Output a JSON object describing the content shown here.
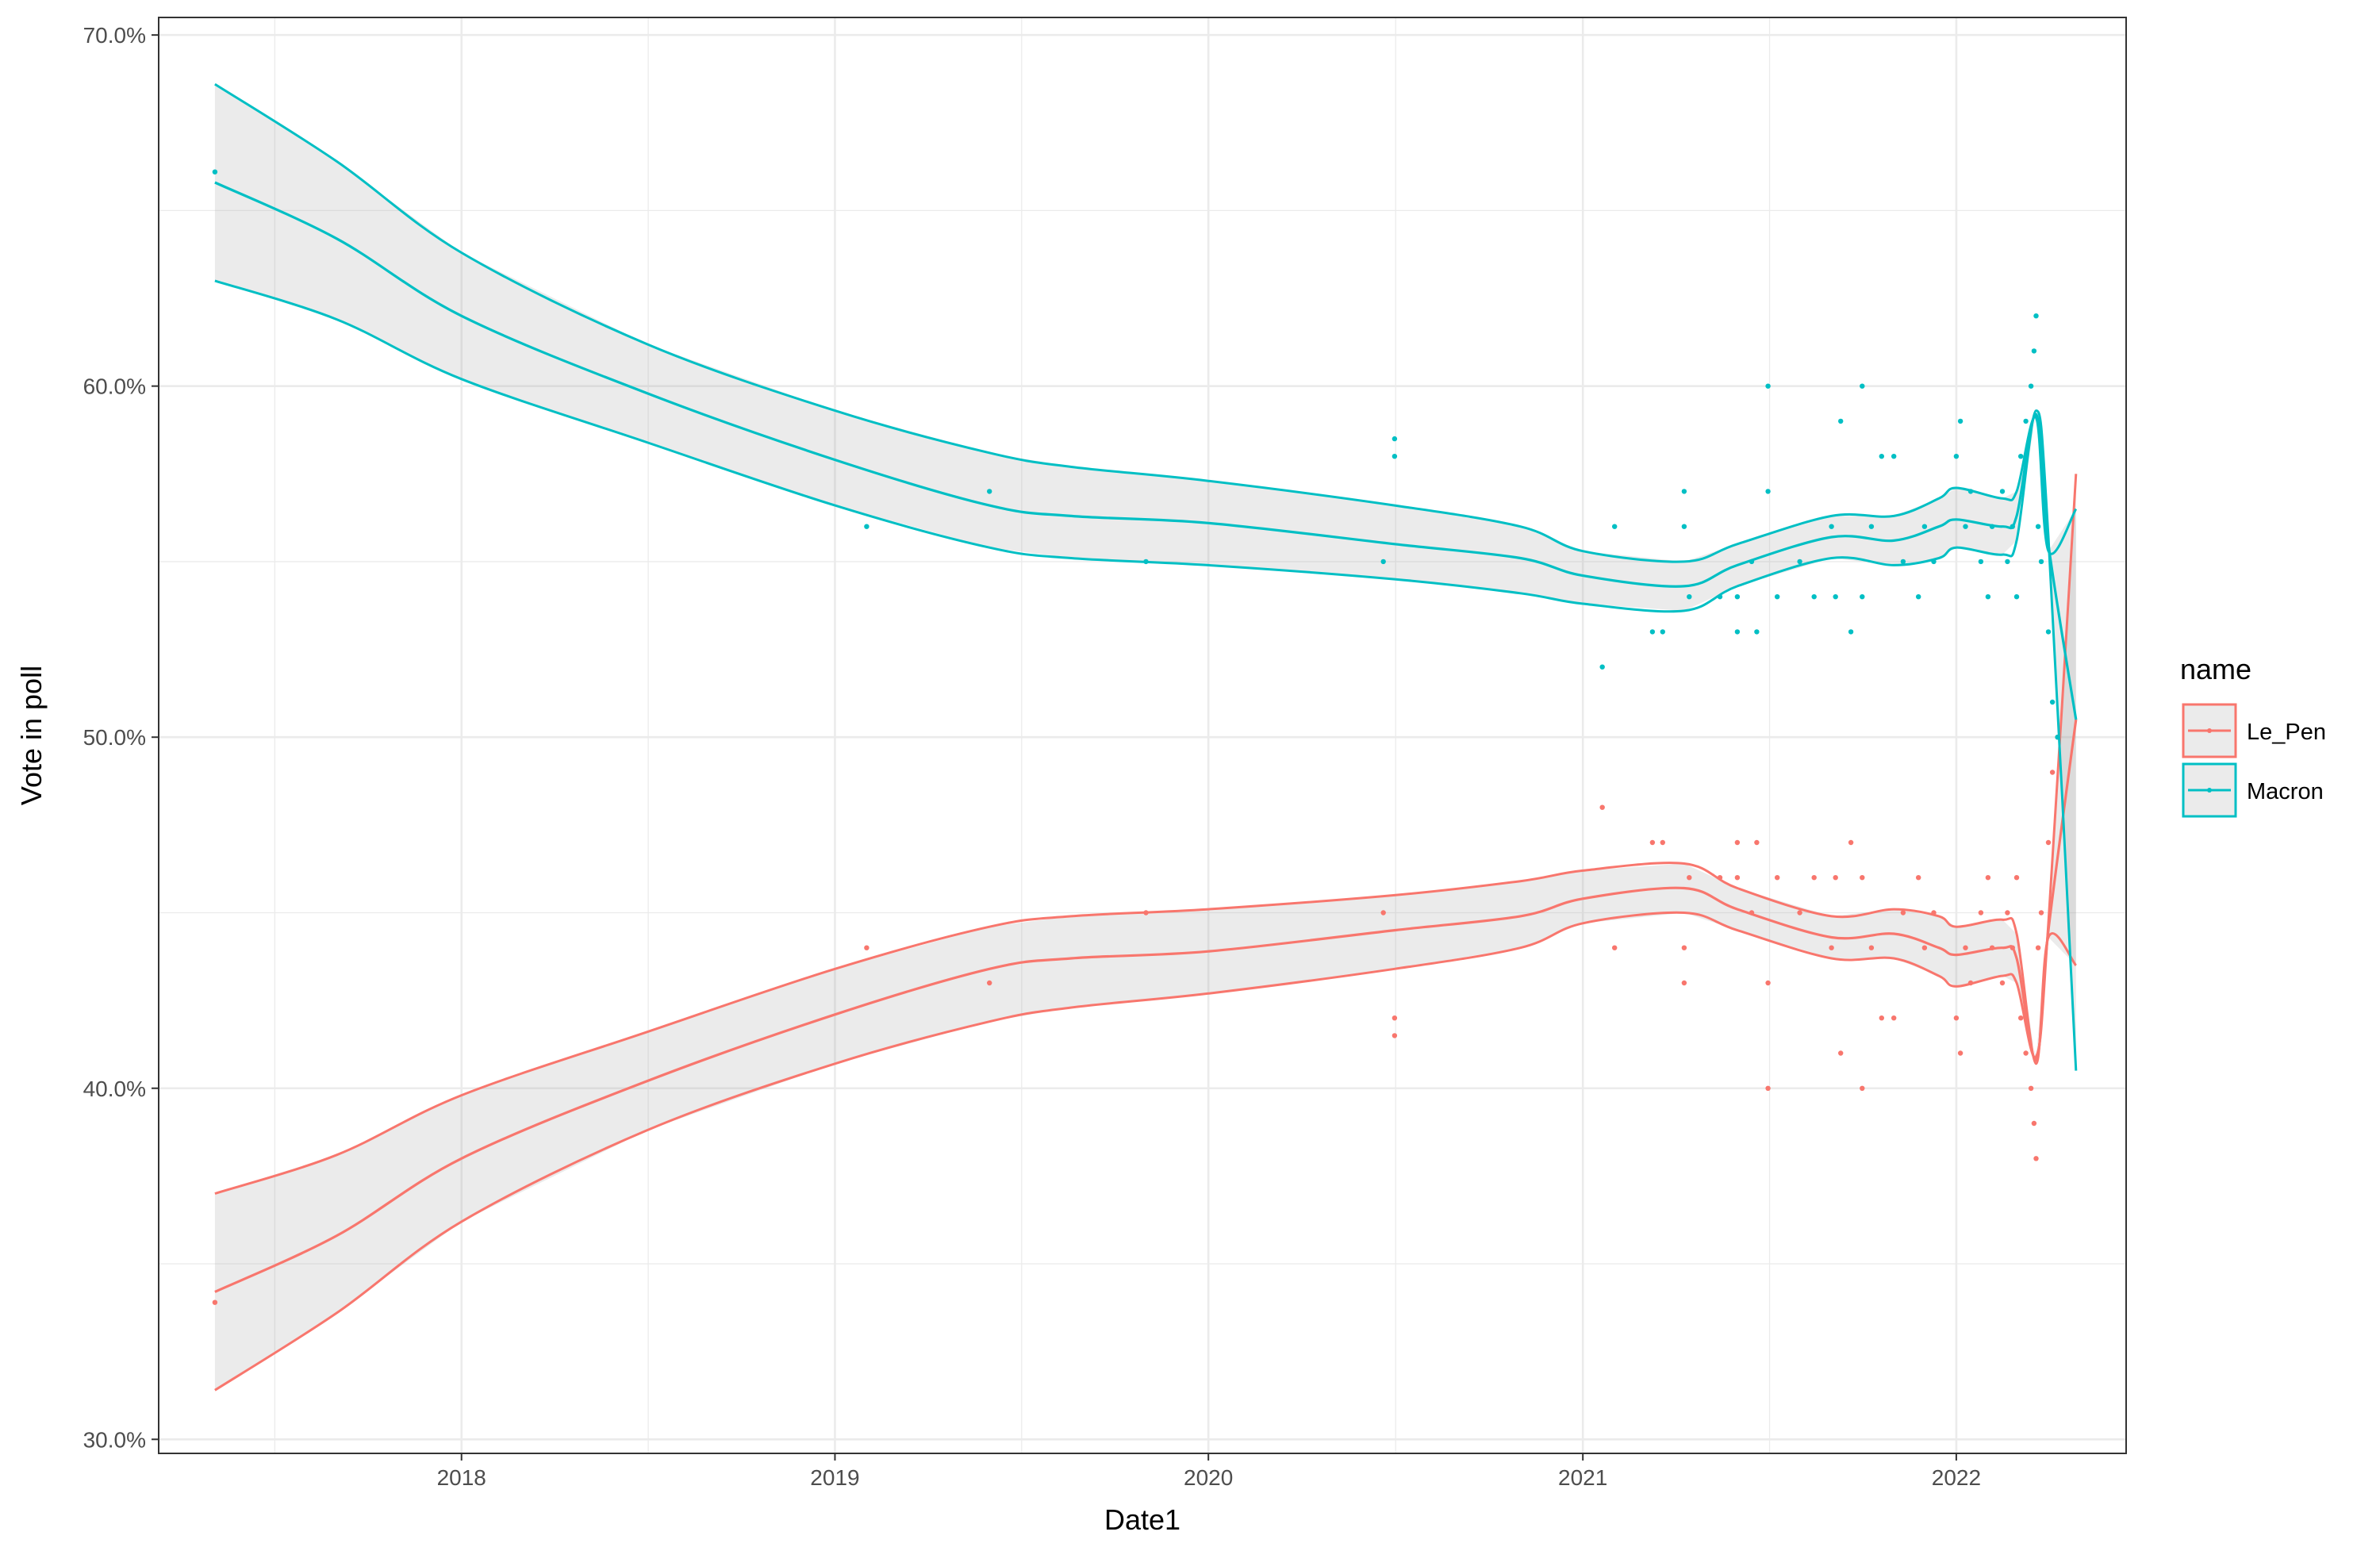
{
  "chart_data": {
    "type": "line",
    "xlabel": "Date1",
    "ylabel": "Vote in poll",
    "x_tick_labels": [
      "2018",
      "2019",
      "2020",
      "2021",
      "2022"
    ],
    "x_ticks": [
      "2018-01-01",
      "2019-01-01",
      "2020-01-01",
      "2021-01-01",
      "2022-01-01"
    ],
    "xlim": [
      "2017-03-11",
      "2022-06-16"
    ],
    "y_tick_labels": [
      "30.0%",
      "40.0%",
      "50.0%",
      "60.0%",
      "70.0%"
    ],
    "y_ticks": [
      0.3,
      0.4,
      0.5,
      0.6,
      0.7
    ],
    "ylim": [
      0.296,
      0.705
    ],
    "grid": true,
    "legend": {
      "title": "name",
      "position": "right",
      "entries": [
        "Le_Pen",
        "Macron"
      ]
    },
    "series": [
      {
        "name": "Le_Pen",
        "color": "#F8766D",
        "points": [
          [
            "2017-05-05",
            0.339
          ],
          [
            "2019-02-01",
            0.44
          ],
          [
            "2019-06-01",
            0.43
          ],
          [
            "2019-11-01",
            0.45
          ],
          [
            "2020-06-20",
            0.45
          ],
          [
            "2020-07-01",
            0.42
          ],
          [
            "2020-07-01",
            0.415
          ],
          [
            "2021-01-20",
            0.48
          ],
          [
            "2021-02-01",
            0.44
          ],
          [
            "2021-03-10",
            0.47
          ],
          [
            "2021-03-20",
            0.47
          ],
          [
            "2021-04-10",
            0.44
          ],
          [
            "2021-04-10",
            0.43
          ],
          [
            "2021-04-15",
            0.46
          ],
          [
            "2021-05-15",
            0.46
          ],
          [
            "2021-06-01",
            0.47
          ],
          [
            "2021-06-01",
            0.46
          ],
          [
            "2021-06-15",
            0.45
          ],
          [
            "2021-06-20",
            0.47
          ],
          [
            "2021-07-01",
            0.4
          ],
          [
            "2021-07-01",
            0.43
          ],
          [
            "2021-07-10",
            0.46
          ],
          [
            "2021-08-01",
            0.45
          ],
          [
            "2021-08-15",
            0.46
          ],
          [
            "2021-09-01",
            0.44
          ],
          [
            "2021-09-05",
            0.46
          ],
          [
            "2021-09-10",
            0.41
          ],
          [
            "2021-09-20",
            0.47
          ],
          [
            "2021-10-01",
            0.4
          ],
          [
            "2021-10-01",
            0.46
          ],
          [
            "2021-10-10",
            0.44
          ],
          [
            "2021-10-20",
            0.42
          ],
          [
            "2021-11-01",
            0.42
          ],
          [
            "2021-11-10",
            0.45
          ],
          [
            "2021-11-25",
            0.46
          ],
          [
            "2021-12-01",
            0.44
          ],
          [
            "2021-12-10",
            0.45
          ],
          [
            "2022-01-01",
            0.42
          ],
          [
            "2022-01-05",
            0.41
          ],
          [
            "2022-01-10",
            0.44
          ],
          [
            "2022-01-15",
            0.43
          ],
          [
            "2022-01-25",
            0.45
          ],
          [
            "2022-02-01",
            0.46
          ],
          [
            "2022-02-05",
            0.44
          ],
          [
            "2022-02-15",
            0.43
          ],
          [
            "2022-02-20",
            0.45
          ],
          [
            "2022-02-25",
            0.44
          ],
          [
            "2022-03-01",
            0.46
          ],
          [
            "2022-03-05",
            0.42
          ],
          [
            "2022-03-10",
            0.41
          ],
          [
            "2022-03-15",
            0.4
          ],
          [
            "2022-03-18",
            0.39
          ],
          [
            "2022-03-20",
            0.38
          ],
          [
            "2022-03-22",
            0.44
          ],
          [
            "2022-03-25",
            0.45
          ],
          [
            "2022-04-01",
            0.47
          ],
          [
            "2022-04-05",
            0.49
          ],
          [
            "2022-04-10",
            0.5
          ]
        ],
        "fit": [
          [
            "2017-05-05",
            0.342
          ],
          [
            "2017-09-01",
            0.358
          ],
          [
            "2018-01-01",
            0.38
          ],
          [
            "2018-07-01",
            0.402
          ],
          [
            "2019-01-01",
            0.421
          ],
          [
            "2019-06-01",
            0.434
          ],
          [
            "2019-08-20",
            0.437
          ],
          [
            "2020-01-01",
            0.439
          ],
          [
            "2020-07-01",
            0.445
          ],
          [
            "2020-11-01",
            0.449
          ],
          [
            "2021-01-01",
            0.454
          ],
          [
            "2021-04-10",
            0.457
          ],
          [
            "2021-06-01",
            0.451
          ],
          [
            "2021-09-01",
            0.443
          ],
          [
            "2021-11-01",
            0.444
          ],
          [
            "2021-12-15",
            0.44
          ],
          [
            "2022-01-01",
            0.438
          ],
          [
            "2022-02-15",
            0.44
          ],
          [
            "2022-03-01",
            0.437
          ],
          [
            "2022-03-20",
            0.408
          ],
          [
            "2022-04-01",
            0.445
          ],
          [
            "2022-04-28",
            0.505
          ]
        ],
        "ci_lower": [
          [
            "2017-05-05",
            0.314
          ],
          [
            "2017-09-01",
            0.336
          ],
          [
            "2018-01-01",
            0.362
          ],
          [
            "2018-07-01",
            0.388
          ],
          [
            "2019-01-01",
            0.407
          ],
          [
            "2019-06-01",
            0.419
          ],
          [
            "2019-08-20",
            0.423
          ],
          [
            "2020-01-01",
            0.427
          ],
          [
            "2020-07-01",
            0.434
          ],
          [
            "2020-11-01",
            0.44
          ],
          [
            "2021-01-01",
            0.447
          ],
          [
            "2021-04-10",
            0.45
          ],
          [
            "2021-06-01",
            0.445
          ],
          [
            "2021-09-01",
            0.437
          ],
          [
            "2021-11-01",
            0.437
          ],
          [
            "2021-12-15",
            0.432
          ],
          [
            "2022-01-01",
            0.429
          ],
          [
            "2022-02-15",
            0.432
          ],
          [
            "2022-03-01",
            0.43
          ],
          [
            "2022-03-20",
            0.409
          ],
          [
            "2022-04-01",
            0.447
          ],
          [
            "2022-04-28",
            0.575
          ]
        ],
        "ci_upper": [
          [
            "2017-05-05",
            0.37
          ],
          [
            "2017-09-01",
            0.381
          ],
          [
            "2018-01-01",
            0.398
          ],
          [
            "2018-07-01",
            0.416
          ],
          [
            "2019-01-01",
            0.434
          ],
          [
            "2019-06-01",
            0.446
          ],
          [
            "2019-08-20",
            0.449
          ],
          [
            "2020-01-01",
            0.451
          ],
          [
            "2020-07-01",
            0.455
          ],
          [
            "2020-11-01",
            0.459
          ],
          [
            "2021-01-01",
            0.462
          ],
          [
            "2021-04-10",
            0.464
          ],
          [
            "2021-06-01",
            0.457
          ],
          [
            "2021-09-01",
            0.449
          ],
          [
            "2021-11-01",
            0.451
          ],
          [
            "2021-12-15",
            0.449
          ],
          [
            "2022-01-01",
            0.446
          ],
          [
            "2022-02-15",
            0.448
          ],
          [
            "2022-03-01",
            0.444
          ],
          [
            "2022-03-20",
            0.407
          ],
          [
            "2022-04-01",
            0.443
          ],
          [
            "2022-04-28",
            0.435
          ]
        ]
      },
      {
        "name": "Macron",
        "color": "#00BFC4",
        "points": [
          [
            "2017-05-05",
            0.661
          ],
          [
            "2019-02-01",
            0.56
          ],
          [
            "2019-06-01",
            0.57
          ],
          [
            "2019-11-01",
            0.55
          ],
          [
            "2020-06-20",
            0.55
          ],
          [
            "2020-07-01",
            0.58
          ],
          [
            "2020-07-01",
            0.585
          ],
          [
            "2021-01-20",
            0.52
          ],
          [
            "2021-02-01",
            0.56
          ],
          [
            "2021-03-10",
            0.53
          ],
          [
            "2021-03-20",
            0.53
          ],
          [
            "2021-04-10",
            0.56
          ],
          [
            "2021-04-10",
            0.57
          ],
          [
            "2021-04-15",
            0.54
          ],
          [
            "2021-05-15",
            0.54
          ],
          [
            "2021-06-01",
            0.53
          ],
          [
            "2021-06-01",
            0.54
          ],
          [
            "2021-06-15",
            0.55
          ],
          [
            "2021-06-20",
            0.53
          ],
          [
            "2021-07-01",
            0.6
          ],
          [
            "2021-07-01",
            0.57
          ],
          [
            "2021-07-10",
            0.54
          ],
          [
            "2021-08-01",
            0.55
          ],
          [
            "2021-08-15",
            0.54
          ],
          [
            "2021-09-01",
            0.56
          ],
          [
            "2021-09-05",
            0.54
          ],
          [
            "2021-09-10",
            0.59
          ],
          [
            "2021-09-20",
            0.53
          ],
          [
            "2021-10-01",
            0.6
          ],
          [
            "2021-10-01",
            0.54
          ],
          [
            "2021-10-10",
            0.56
          ],
          [
            "2021-10-20",
            0.58
          ],
          [
            "2021-11-01",
            0.58
          ],
          [
            "2021-11-10",
            0.55
          ],
          [
            "2021-11-25",
            0.54
          ],
          [
            "2021-12-01",
            0.56
          ],
          [
            "2021-12-10",
            0.55
          ],
          [
            "2022-01-01",
            0.58
          ],
          [
            "2022-01-05",
            0.59
          ],
          [
            "2022-01-10",
            0.56
          ],
          [
            "2022-01-15",
            0.57
          ],
          [
            "2022-01-25",
            0.55
          ],
          [
            "2022-02-01",
            0.54
          ],
          [
            "2022-02-05",
            0.56
          ],
          [
            "2022-02-15",
            0.57
          ],
          [
            "2022-02-20",
            0.55
          ],
          [
            "2022-02-25",
            0.56
          ],
          [
            "2022-03-01",
            0.54
          ],
          [
            "2022-03-05",
            0.58
          ],
          [
            "2022-03-10",
            0.59
          ],
          [
            "2022-03-15",
            0.6
          ],
          [
            "2022-03-18",
            0.61
          ],
          [
            "2022-03-20",
            0.62
          ],
          [
            "2022-03-22",
            0.56
          ],
          [
            "2022-03-25",
            0.55
          ],
          [
            "2022-04-01",
            0.53
          ],
          [
            "2022-04-05",
            0.51
          ],
          [
            "2022-04-10",
            0.5
          ]
        ],
        "fit": [
          [
            "2017-05-05",
            0.658
          ],
          [
            "2017-09-01",
            0.642
          ],
          [
            "2018-01-01",
            0.62
          ],
          [
            "2018-07-01",
            0.598
          ],
          [
            "2019-01-01",
            0.579
          ],
          [
            "2019-06-01",
            0.566
          ],
          [
            "2019-08-20",
            0.563
          ],
          [
            "2020-01-01",
            0.561
          ],
          [
            "2020-07-01",
            0.555
          ],
          [
            "2020-11-01",
            0.551
          ],
          [
            "2021-01-01",
            0.546
          ],
          [
            "2021-04-10",
            0.543
          ],
          [
            "2021-06-01",
            0.549
          ],
          [
            "2021-09-01",
            0.557
          ],
          [
            "2021-11-01",
            0.556
          ],
          [
            "2021-12-15",
            0.56
          ],
          [
            "2022-01-01",
            0.562
          ],
          [
            "2022-02-15",
            0.56
          ],
          [
            "2022-03-01",
            0.563
          ],
          [
            "2022-03-20",
            0.592
          ],
          [
            "2022-04-01",
            0.555
          ],
          [
            "2022-04-28",
            0.505
          ]
        ],
        "ci_lower": [
          [
            "2017-05-05",
            0.63
          ],
          [
            "2017-09-01",
            0.619
          ],
          [
            "2018-01-01",
            0.602
          ],
          [
            "2018-07-01",
            0.584
          ],
          [
            "2019-01-01",
            0.566
          ],
          [
            "2019-06-01",
            0.554
          ],
          [
            "2019-08-20",
            0.551
          ],
          [
            "2020-01-01",
            0.549
          ],
          [
            "2020-07-01",
            0.545
          ],
          [
            "2020-11-01",
            0.541
          ],
          [
            "2021-01-01",
            0.538
          ],
          [
            "2021-04-10",
            0.536
          ],
          [
            "2021-06-01",
            0.543
          ],
          [
            "2021-09-01",
            0.551
          ],
          [
            "2021-11-01",
            0.549
          ],
          [
            "2021-12-15",
            0.551
          ],
          [
            "2022-01-01",
            0.554
          ],
          [
            "2022-02-15",
            0.552
          ],
          [
            "2022-03-01",
            0.556
          ],
          [
            "2022-03-20",
            0.593
          ],
          [
            "2022-04-01",
            0.557
          ],
          [
            "2022-04-28",
            0.405
          ]
        ],
        "ci_upper": [
          [
            "2017-05-05",
            0.686
          ],
          [
            "2017-09-01",
            0.664
          ],
          [
            "2018-01-01",
            0.638
          ],
          [
            "2018-07-01",
            0.612
          ],
          [
            "2019-01-01",
            0.593
          ],
          [
            "2019-06-01",
            0.581
          ],
          [
            "2019-08-20",
            0.577
          ],
          [
            "2020-01-01",
            0.573
          ],
          [
            "2020-07-01",
            0.566
          ],
          [
            "2020-11-01",
            0.56
          ],
          [
            "2021-01-01",
            0.553
          ],
          [
            "2021-04-10",
            0.55
          ],
          [
            "2021-06-01",
            0.555
          ],
          [
            "2021-09-01",
            0.563
          ],
          [
            "2021-11-01",
            0.563
          ],
          [
            "2021-12-15",
            0.568
          ],
          [
            "2022-01-01",
            0.571
          ],
          [
            "2022-02-15",
            0.568
          ],
          [
            "2022-03-01",
            0.57
          ],
          [
            "2022-03-20",
            0.591
          ],
          [
            "2022-04-01",
            0.553
          ],
          [
            "2022-04-28",
            0.565
          ]
        ]
      }
    ]
  }
}
